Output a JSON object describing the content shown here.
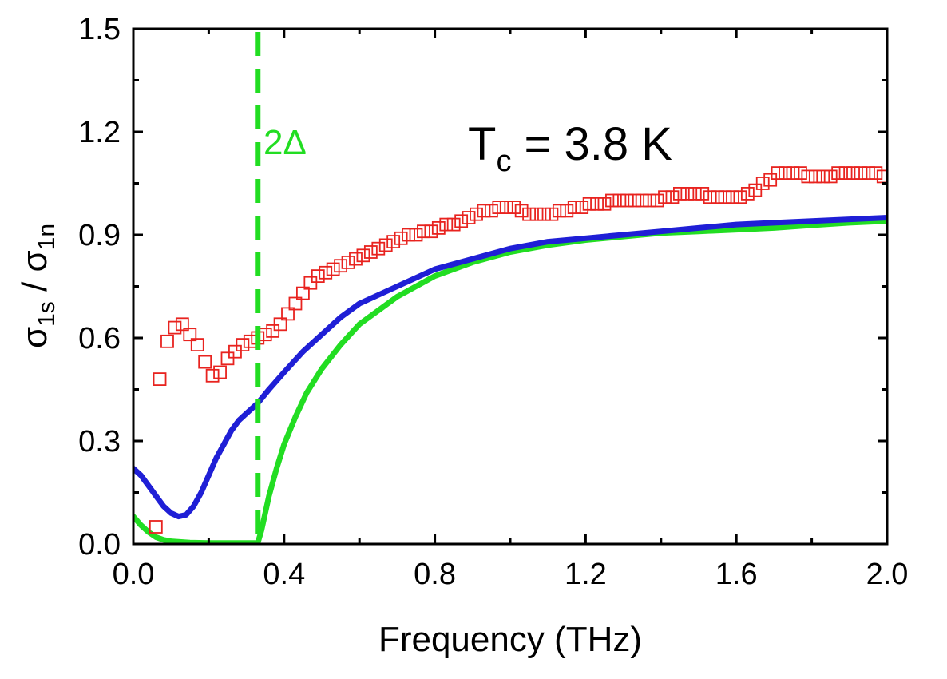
{
  "chart_data": {
    "type": "scatter",
    "xlabel": "Frequency (THz)",
    "ylabel": {
      "num_symbol": "σ",
      "num_sub": "1s",
      "sep": " / ",
      "den_symbol": "σ",
      "den_sub": "1n"
    },
    "xlim": [
      0.0,
      2.0
    ],
    "ylim": [
      0.0,
      1.5
    ],
    "x_ticks": [
      "0.0",
      "0.4",
      "0.8",
      "1.2",
      "1.6",
      "2.0"
    ],
    "y_ticks": [
      "0.0",
      "0.3",
      "0.6",
      "0.9",
      "1.2",
      "1.5"
    ],
    "grid": false,
    "annotations": {
      "gap_label": "2Δ",
      "tc_main": "T",
      "tc_sub": "c",
      "tc_rest": " = 3.8 K"
    },
    "gap_line_x": 0.33,
    "colors": {
      "data": "#e8231f",
      "fit_blue": "#1f1fd6",
      "fit_green": "#22dd22",
      "gap": "#22dd22"
    },
    "series": [
      {
        "kind": "markers",
        "x": [
          0.06,
          0.07,
          0.09,
          0.11,
          0.13,
          0.15,
          0.17,
          0.19,
          0.21,
          0.23,
          0.25,
          0.27,
          0.29,
          0.31,
          0.33,
          0.35,
          0.37,
          0.39,
          0.41,
          0.43,
          0.45,
          0.47,
          0.49,
          0.51,
          0.53,
          0.55,
          0.57,
          0.59,
          0.61,
          0.63,
          0.65,
          0.67,
          0.69,
          0.71,
          0.73,
          0.75,
          0.77,
          0.79,
          0.81,
          0.83,
          0.85,
          0.87,
          0.89,
          0.91,
          0.93,
          0.95,
          0.97,
          0.99,
          1.01,
          1.03,
          1.05,
          1.07,
          1.09,
          1.11,
          1.13,
          1.15,
          1.17,
          1.19,
          1.21,
          1.23,
          1.25,
          1.27,
          1.29,
          1.31,
          1.33,
          1.35,
          1.37,
          1.39,
          1.41,
          1.43,
          1.45,
          1.47,
          1.49,
          1.51,
          1.53,
          1.55,
          1.57,
          1.59,
          1.61,
          1.63,
          1.65,
          1.67,
          1.69,
          1.71,
          1.73,
          1.75,
          1.77,
          1.79,
          1.81,
          1.83,
          1.85,
          1.87,
          1.89,
          1.91,
          1.93,
          1.95,
          1.97,
          1.99
        ],
        "y": [
          0.05,
          0.48,
          0.59,
          0.63,
          0.64,
          0.61,
          0.58,
          0.53,
          0.49,
          0.5,
          0.54,
          0.56,
          0.58,
          0.59,
          0.6,
          0.61,
          0.62,
          0.64,
          0.67,
          0.7,
          0.73,
          0.76,
          0.78,
          0.79,
          0.8,
          0.81,
          0.82,
          0.83,
          0.84,
          0.85,
          0.86,
          0.87,
          0.88,
          0.89,
          0.9,
          0.9,
          0.91,
          0.91,
          0.92,
          0.93,
          0.93,
          0.94,
          0.95,
          0.96,
          0.97,
          0.97,
          0.98,
          0.98,
          0.98,
          0.97,
          0.96,
          0.96,
          0.96,
          0.96,
          0.97,
          0.97,
          0.98,
          0.98,
          0.99,
          0.99,
          0.99,
          1.0,
          1.0,
          1.0,
          1.0,
          1.0,
          1.0,
          1.0,
          1.01,
          1.01,
          1.02,
          1.02,
          1.02,
          1.02,
          1.01,
          1.01,
          1.01,
          1.01,
          1.01,
          1.02,
          1.03,
          1.05,
          1.06,
          1.08,
          1.08,
          1.08,
          1.08,
          1.07,
          1.07,
          1.07,
          1.07,
          1.08,
          1.08,
          1.08,
          1.08,
          1.08,
          1.08,
          1.07
        ]
      },
      {
        "kind": "line",
        "x": [
          0.0,
          0.02,
          0.04,
          0.06,
          0.08,
          0.1,
          0.12,
          0.14,
          0.16,
          0.18,
          0.2,
          0.22,
          0.24,
          0.26,
          0.28,
          0.3,
          0.33,
          0.36,
          0.4,
          0.45,
          0.5,
          0.55,
          0.6,
          0.7,
          0.8,
          0.9,
          1.0,
          1.1,
          1.2,
          1.3,
          1.4,
          1.5,
          1.6,
          1.7,
          1.8,
          1.9,
          2.0
        ],
        "y": [
          0.22,
          0.2,
          0.17,
          0.14,
          0.11,
          0.09,
          0.08,
          0.085,
          0.11,
          0.15,
          0.2,
          0.25,
          0.29,
          0.33,
          0.36,
          0.38,
          0.41,
          0.45,
          0.5,
          0.56,
          0.61,
          0.66,
          0.7,
          0.75,
          0.8,
          0.83,
          0.86,
          0.88,
          0.89,
          0.9,
          0.91,
          0.92,
          0.93,
          0.935,
          0.94,
          0.945,
          0.95
        ]
      },
      {
        "kind": "line",
        "x": [
          0.0,
          0.02,
          0.04,
          0.06,
          0.08,
          0.1,
          0.15,
          0.2,
          0.25,
          0.3,
          0.33,
          0.34,
          0.35,
          0.36,
          0.38,
          0.4,
          0.43,
          0.46,
          0.5,
          0.55,
          0.6,
          0.7,
          0.8,
          0.9,
          1.0,
          1.1,
          1.2,
          1.3,
          1.4,
          1.5,
          1.6,
          1.7,
          1.8,
          1.9,
          2.0
        ],
        "y": [
          0.08,
          0.055,
          0.035,
          0.02,
          0.012,
          0.008,
          0.004,
          0.003,
          0.003,
          0.003,
          0.003,
          0.04,
          0.09,
          0.14,
          0.22,
          0.29,
          0.37,
          0.44,
          0.51,
          0.58,
          0.64,
          0.72,
          0.78,
          0.82,
          0.85,
          0.87,
          0.885,
          0.895,
          0.905,
          0.91,
          0.915,
          0.92,
          0.928,
          0.935,
          0.94
        ]
      }
    ]
  }
}
